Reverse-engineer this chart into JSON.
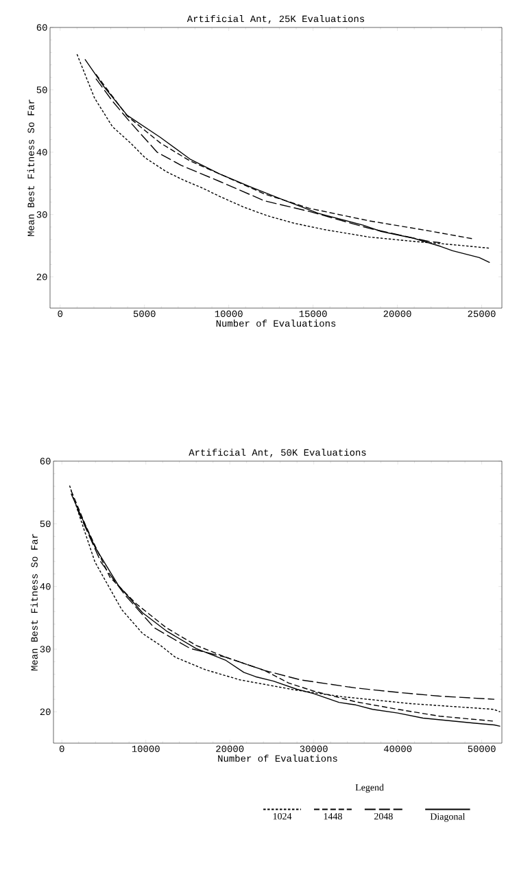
{
  "chart_data": [
    {
      "type": "line",
      "title": "Artificial Ant, 25K Evaluations",
      "xlabel": "Number of Evaluations",
      "ylabel": "Mean Best Fitness So Far",
      "xlim": [
        -600,
        26200
      ],
      "ylim": [
        15,
        60
      ],
      "xticks": [
        0,
        5000,
        10000,
        15000,
        20000,
        25000
      ],
      "yticks": [
        20,
        30,
        40,
        50,
        60
      ],
      "series": [
        {
          "color": "#000000",
          "line_style": "dotted",
          "x": [
            1000,
            2035,
            3100,
            4160,
            5040,
            6280,
            7340,
            8400,
            9470,
            10880,
            12300,
            13890,
            15660,
            18310,
            20970,
            22740,
            23970,
            25480
          ],
          "values": [
            55.7,
            48.7,
            44.1,
            41.5,
            39.1,
            36.9,
            35.5,
            34.3,
            32.9,
            31.2,
            29.8,
            28.6,
            27.6,
            26.4,
            25.7,
            25.3,
            25.0,
            24.6
          ]
        },
        {
          "color": "#000000",
          "line_style": "dashed",
          "x": [
            2120,
            2920,
            3980,
            5930,
            7700,
            9470,
            12120,
            14780,
            18310,
            21850,
            24500
          ],
          "values": [
            52.5,
            49.6,
            45.8,
            41.5,
            38.6,
            36.5,
            33.3,
            31.0,
            29.0,
            27.4,
            26.1
          ]
        },
        {
          "color": "#000000",
          "line_style": "dashed",
          "x": [
            2120,
            3100,
            4160,
            5750,
            7170,
            9470,
            12120,
            14780,
            18310,
            21850,
            22560
          ],
          "values": [
            51.8,
            48.2,
            44.8,
            40.0,
            37.9,
            35.3,
            32.2,
            30.5,
            27.8,
            25.7,
            25.5
          ]
        },
        {
          "color": "#000000",
          "line_style": "solid",
          "x": [
            1470,
            2570,
            3980,
            5930,
            7700,
            9470,
            11240,
            13010,
            15310,
            17970,
            19030,
            20970,
            22560,
            23270,
            24860,
            25480
          ],
          "values": [
            54.9,
            50.6,
            45.9,
            42.4,
            38.9,
            36.5,
            34.5,
            32.6,
            30.2,
            28.3,
            27.3,
            26.2,
            24.9,
            24.2,
            23.1,
            22.3
          ]
        }
      ]
    },
    {
      "type": "line",
      "title": "Artificial Ant, 50K Evaluations",
      "xlabel": "Number of Evaluations",
      "ylabel": "Mean Best Fitness So Far",
      "xlim": [
        -1000,
        52400
      ],
      "ylim": [
        15,
        60
      ],
      "xticks": [
        0,
        10000,
        20000,
        30000,
        40000,
        50000
      ],
      "yticks": [
        20,
        30,
        40,
        50,
        60
      ],
      "legend": "bottom",
      "legend_title": "Legend",
      "series": [
        {
          "name": "1024",
          "color": "#000000",
          "line_style": "dotted",
          "x": [
            920,
            2160,
            3940,
            7130,
            9610,
            11740,
            13520,
            17130,
            21200,
            27730,
            33440,
            41600,
            51400,
            52200
          ],
          "values": [
            56.1,
            51.0,
            43.9,
            36.3,
            32.5,
            30.6,
            28.7,
            26.7,
            25.1,
            23.5,
            22.4,
            21.3,
            20.4,
            20.0
          ]
        },
        {
          "name": "1448",
          "color": "#000000",
          "line_style": "dashed",
          "x": [
            1100,
            2870,
            5710,
            8890,
            12450,
            15990,
            19540,
            24140,
            27000,
            30000,
            35000,
            40000,
            45000,
            51500
          ],
          "values": [
            55.3,
            49.6,
            41.5,
            37.2,
            33.4,
            30.6,
            28.7,
            26.6,
            24.6,
            23.3,
            21.6,
            20.4,
            19.3,
            18.5
          ]
        },
        {
          "name": "2048",
          "color": "#000000",
          "line_style": "dashed",
          "x": [
            1810,
            4650,
            7480,
            11010,
            15290,
            19540,
            24140,
            28400,
            35000,
            40000,
            45000,
            51500
          ],
          "values": [
            52.4,
            43.9,
            38.7,
            33.4,
            30.1,
            28.7,
            26.6,
            25.1,
            23.8,
            23.1,
            22.5,
            22.0
          ]
        },
        {
          "name": "Diagonal",
          "color": "#000000",
          "line_style": "solid",
          "x": [
            1100,
            3940,
            6770,
            9610,
            12450,
            15990,
            19540,
            21670,
            23080,
            25200,
            28000,
            30000,
            33000,
            35000,
            37000,
            40000,
            43000,
            46000,
            49000,
            51500,
            52200
          ],
          "values": [
            54.8,
            46.3,
            40.1,
            35.8,
            32.9,
            30.1,
            28.2,
            26.3,
            25.6,
            24.9,
            23.6,
            22.9,
            21.5,
            21.1,
            20.4,
            19.8,
            19.0,
            18.6,
            18.2,
            17.9,
            17.7
          ]
        }
      ]
    }
  ]
}
